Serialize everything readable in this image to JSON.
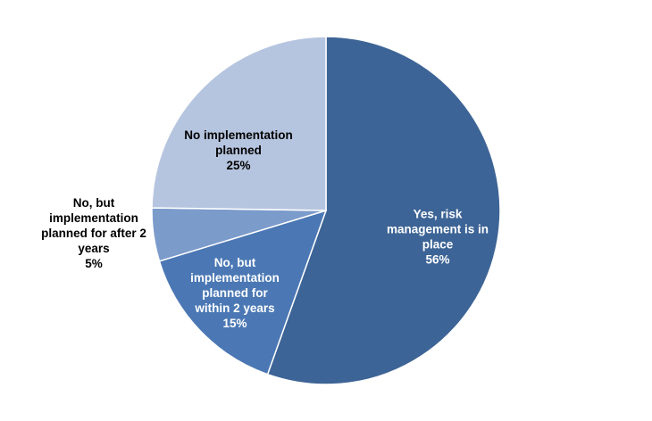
{
  "chart_data": {
    "type": "pie",
    "title": "",
    "start_angle_deg": 0,
    "direction": "clockwise",
    "legend": "none",
    "slices": [
      {
        "label_lines": [
          "Yes, risk",
          "management is in",
          "place"
        ],
        "percent_label": "56%",
        "value": 56,
        "color": "#3D6496",
        "label_color": "#ffffff",
        "label_placement": "inside"
      },
      {
        "label_lines": [
          "No, but",
          "implementation",
          "planned for",
          "within 2 years"
        ],
        "percent_label": "15%",
        "value": 15,
        "color": "#4B78B4",
        "label_color": "#ffffff",
        "label_placement": "inside"
      },
      {
        "label_lines": [
          "No, but",
          "implementation",
          "planned for after 2",
          "years"
        ],
        "percent_label": "5%",
        "value": 5,
        "color": "#7B9BCB",
        "label_color": "#000000",
        "label_placement": "outside-left"
      },
      {
        "label_lines": [
          "No implementation",
          "planned"
        ],
        "percent_label": "25%",
        "value": 25,
        "color": "#B6C5DF",
        "label_color": "#000000",
        "label_placement": "inside"
      }
    ]
  }
}
